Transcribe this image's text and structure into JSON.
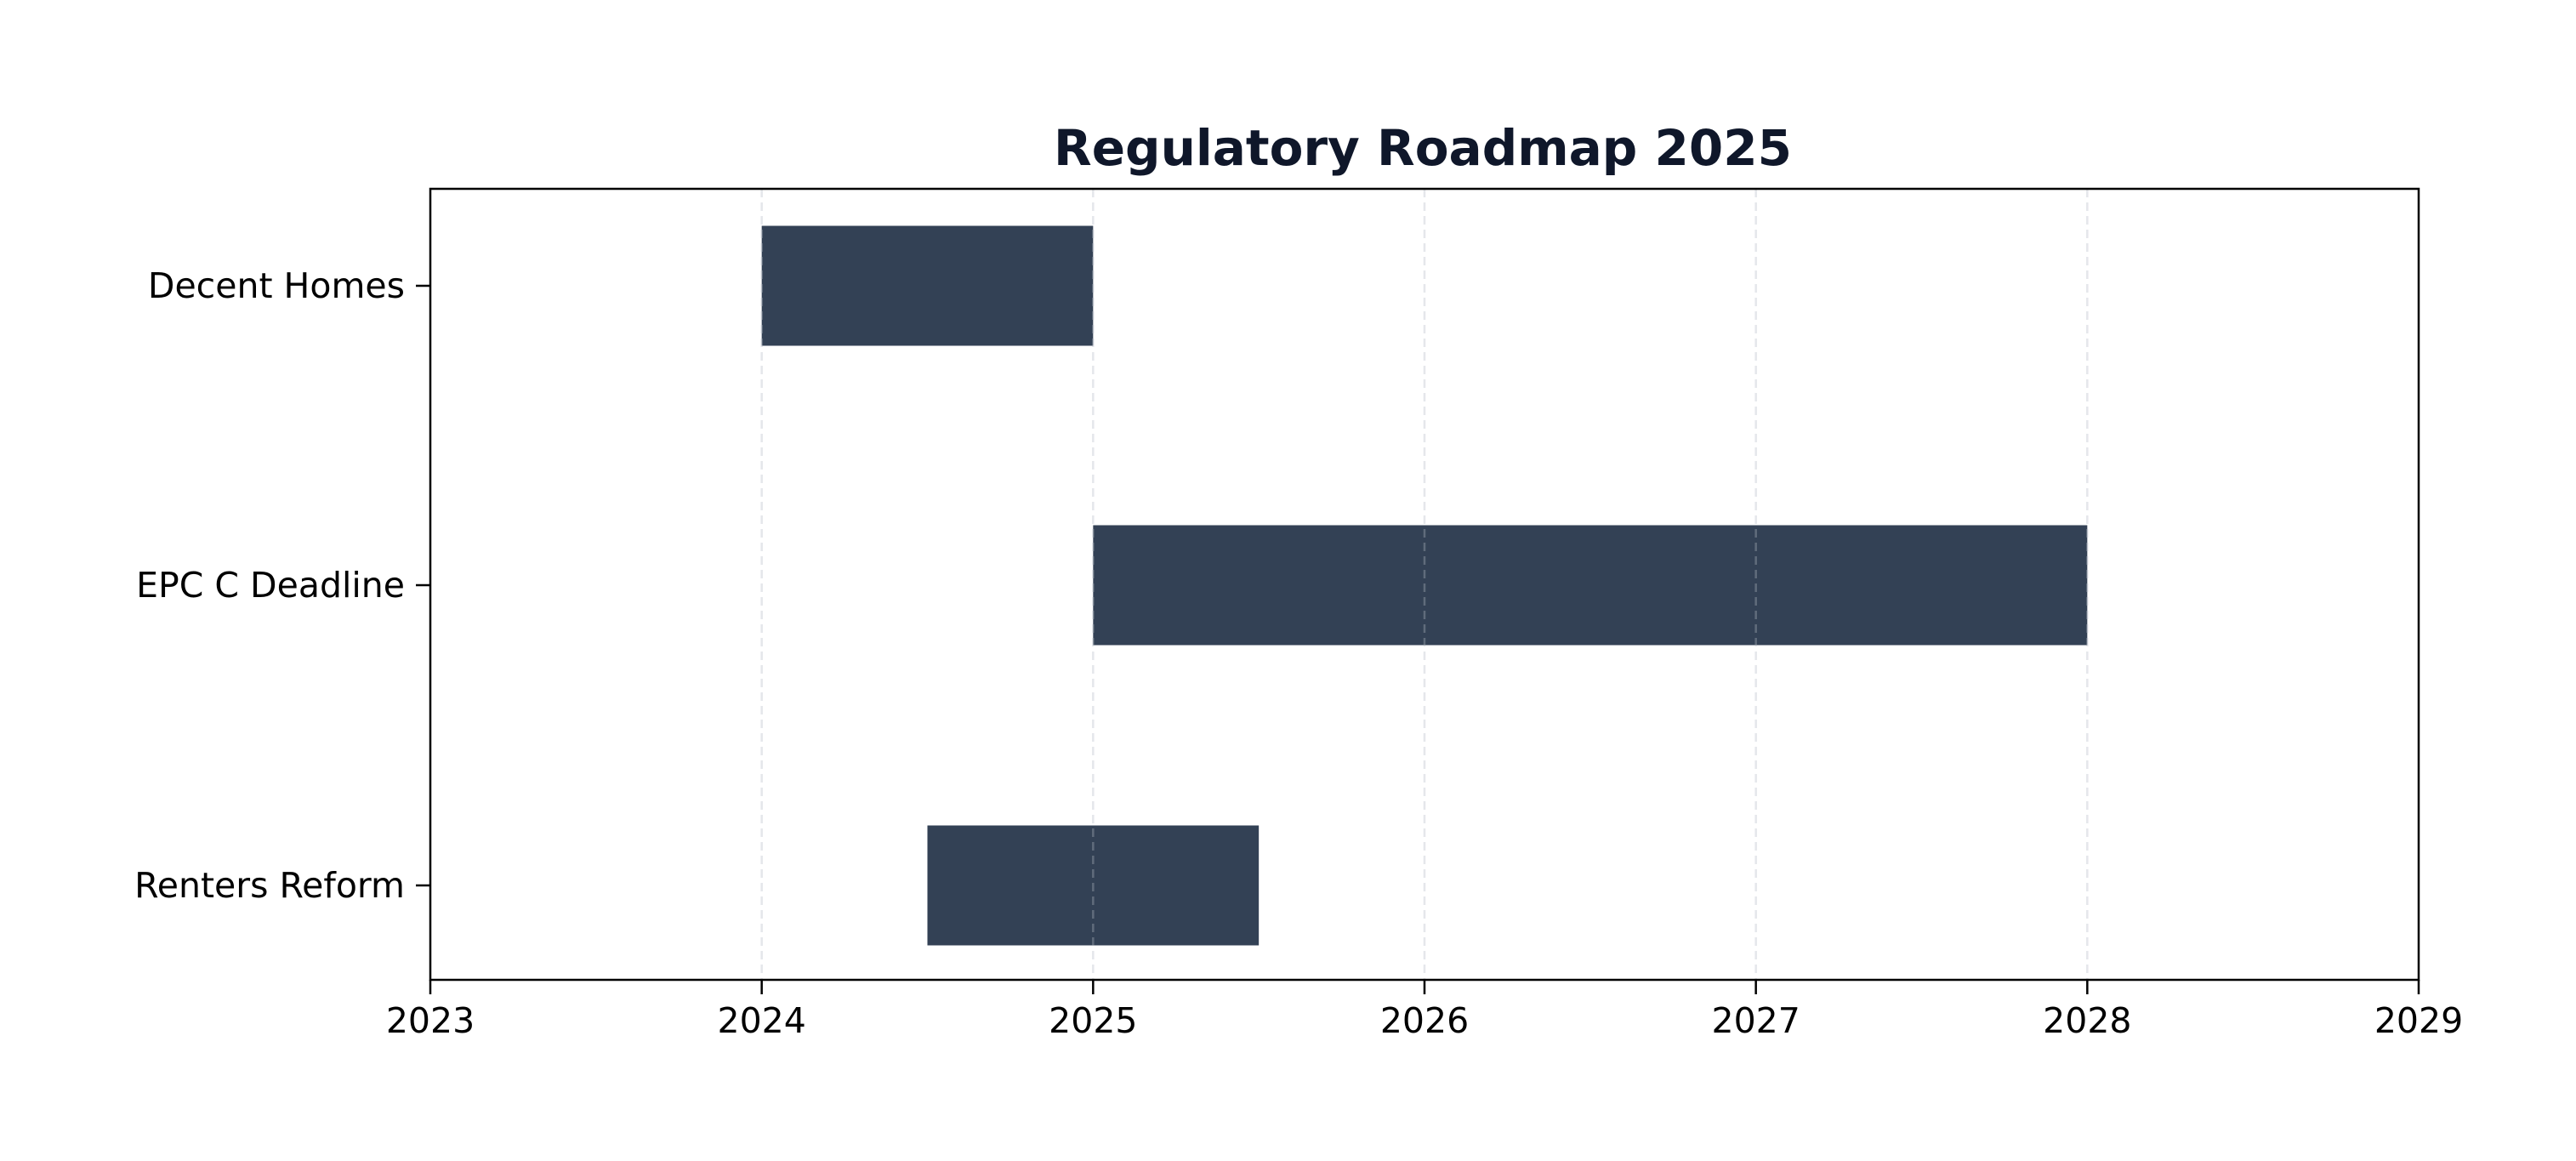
{
  "chart_data": {
    "type": "gantt",
    "title": "Regulatory Roadmap 2025",
    "xlabel": "",
    "ylabel": "",
    "xlim": [
      2023,
      2029
    ],
    "x_ticks": [
      "2023",
      "2024",
      "2025",
      "2026",
      "2027",
      "2028",
      "2029"
    ],
    "grid": "vertical dashed",
    "tasks": [
      {
        "label": "Decent Homes",
        "start": 2024.0,
        "end": 2025.0
      },
      {
        "label": "EPC C Deadline",
        "start": 2025.0,
        "end": 2028.0
      },
      {
        "label": "Renters Reform",
        "start": 2024.5,
        "end": 2025.5
      }
    ],
    "colors": {
      "bar": "#334155",
      "title": "#0f172a",
      "grid": "#e5e7eb",
      "axis": "#000000"
    }
  }
}
